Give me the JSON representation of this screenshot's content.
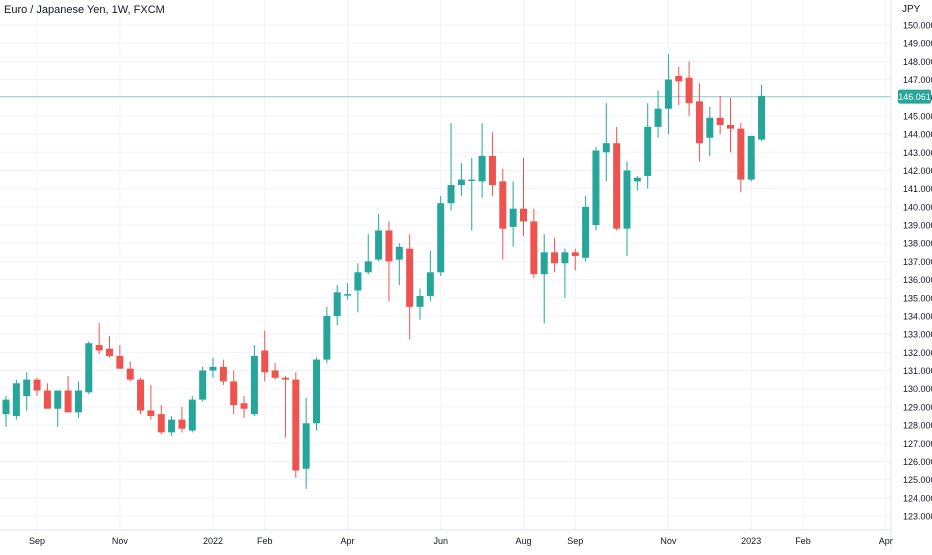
{
  "header": {
    "title": "Euro / Japanese Yen, 1W, FXCM",
    "unit": "JPY"
  },
  "colors": {
    "up": "#26a69a",
    "down": "#ef5350",
    "grid": "#f0f3fa",
    "price_line": "#26a69a",
    "text": "#131722"
  },
  "chart_data": {
    "type": "candlestick",
    "title": "Euro / Japanese Yen, 1W, FXCM",
    "ylabel": "JPY",
    "y_ticks": [
      "123.000",
      "124.000",
      "125.000",
      "126.000",
      "127.000",
      "128.000",
      "129.000",
      "130.000",
      "131.000",
      "132.000",
      "133.000",
      "134.000",
      "135.000",
      "136.000",
      "137.000",
      "138.000",
      "139.000",
      "140.000",
      "141.000",
      "142.000",
      "143.000",
      "144.000",
      "145.000",
      "146.000",
      "147.000",
      "148.000",
      "149.000",
      "150.000"
    ],
    "x_ticks": [
      {
        "label": "Sep",
        "index": 3
      },
      {
        "label": "Nov",
        "index": 11
      },
      {
        "label": "2022",
        "index": 20
      },
      {
        "label": "Feb",
        "index": 25
      },
      {
        "label": "Apr",
        "index": 33
      },
      {
        "label": "Jun",
        "index": 42
      },
      {
        "label": "Aug",
        "index": 50
      },
      {
        "label": "Sep",
        "index": 55
      },
      {
        "label": "Nov",
        "index": 64
      },
      {
        "label": "2023",
        "index": 72
      },
      {
        "label": "Feb",
        "index": 77
      },
      {
        "label": "Apr",
        "index": 85
      }
    ],
    "ylim": [
      122.5,
      151.0
    ],
    "last_price": "146.061",
    "candles": [
      {
        "o": 128.6,
        "h": 129.6,
        "l": 127.9,
        "c": 129.4
      },
      {
        "o": 128.5,
        "h": 130.5,
        "l": 128.3,
        "c": 130.3
      },
      {
        "o": 129.6,
        "h": 130.9,
        "l": 128.8,
        "c": 130.5
      },
      {
        "o": 130.5,
        "h": 130.6,
        "l": 129.6,
        "c": 129.9
      },
      {
        "o": 129.9,
        "h": 130.3,
        "l": 128.9,
        "c": 128.9
      },
      {
        "o": 128.9,
        "h": 129.8,
        "l": 127.9,
        "c": 129.9
      },
      {
        "o": 129.9,
        "h": 130.7,
        "l": 128.7,
        "c": 128.7
      },
      {
        "o": 128.7,
        "h": 130.4,
        "l": 128.4,
        "c": 129.9
      },
      {
        "o": 129.8,
        "h": 132.6,
        "l": 129.7,
        "c": 132.5
      },
      {
        "o": 132.4,
        "h": 133.6,
        "l": 131.9,
        "c": 132.1
      },
      {
        "o": 132.2,
        "h": 132.9,
        "l": 131.7,
        "c": 131.8
      },
      {
        "o": 131.8,
        "h": 132.4,
        "l": 131.1,
        "c": 131.1
      },
      {
        "o": 131.1,
        "h": 131.5,
        "l": 130.4,
        "c": 130.5
      },
      {
        "o": 130.5,
        "h": 130.6,
        "l": 128.6,
        "c": 128.8
      },
      {
        "o": 128.8,
        "h": 130.2,
        "l": 128.3,
        "c": 128.5
      },
      {
        "o": 128.6,
        "h": 129.1,
        "l": 127.5,
        "c": 127.6
      },
      {
        "o": 127.6,
        "h": 128.5,
        "l": 127.4,
        "c": 128.3
      },
      {
        "o": 128.3,
        "h": 129.0,
        "l": 127.6,
        "c": 127.8
      },
      {
        "o": 127.7,
        "h": 129.6,
        "l": 127.6,
        "c": 129.4
      },
      {
        "o": 129.4,
        "h": 131.2,
        "l": 129.3,
        "c": 131.0
      },
      {
        "o": 131.0,
        "h": 131.7,
        "l": 130.6,
        "c": 131.2
      },
      {
        "o": 131.2,
        "h": 131.6,
        "l": 130.2,
        "c": 130.4
      },
      {
        "o": 130.4,
        "h": 131.0,
        "l": 128.6,
        "c": 129.1
      },
      {
        "o": 129.2,
        "h": 129.6,
        "l": 128.4,
        "c": 128.9
      },
      {
        "o": 128.6,
        "h": 132.4,
        "l": 128.5,
        "c": 131.8
      },
      {
        "o": 132.1,
        "h": 133.2,
        "l": 130.4,
        "c": 130.9
      },
      {
        "o": 131.0,
        "h": 131.4,
        "l": 130.5,
        "c": 130.6
      },
      {
        "o": 130.6,
        "h": 130.7,
        "l": 127.3,
        "c": 130.5
      },
      {
        "o": 130.5,
        "h": 130.9,
        "l": 125.1,
        "c": 125.5
      },
      {
        "o": 125.6,
        "h": 129.5,
        "l": 124.5,
        "c": 128.1
      },
      {
        "o": 128.1,
        "h": 131.7,
        "l": 127.7,
        "c": 131.6
      },
      {
        "o": 131.6,
        "h": 134.5,
        "l": 131.4,
        "c": 134.0
      },
      {
        "o": 134.0,
        "h": 135.7,
        "l": 133.5,
        "c": 135.3
      },
      {
        "o": 135.2,
        "h": 135.8,
        "l": 134.9,
        "c": 135.2
      },
      {
        "o": 135.4,
        "h": 136.9,
        "l": 134.2,
        "c": 136.4
      },
      {
        "o": 136.4,
        "h": 138.5,
        "l": 136.3,
        "c": 137.0
      },
      {
        "o": 137.1,
        "h": 139.6,
        "l": 137.0,
        "c": 138.7
      },
      {
        "o": 138.7,
        "h": 139.2,
        "l": 134.8,
        "c": 137.0
      },
      {
        "o": 137.1,
        "h": 138.0,
        "l": 135.7,
        "c": 137.8
      },
      {
        "o": 137.7,
        "h": 138.5,
        "l": 132.7,
        "c": 134.5
      },
      {
        "o": 134.5,
        "h": 135.5,
        "l": 133.8,
        "c": 135.1
      },
      {
        "o": 135.1,
        "h": 137.6,
        "l": 134.8,
        "c": 136.4
      },
      {
        "o": 136.4,
        "h": 140.6,
        "l": 136.2,
        "c": 140.2
      },
      {
        "o": 140.2,
        "h": 144.6,
        "l": 139.8,
        "c": 141.2
      },
      {
        "o": 141.2,
        "h": 142.4,
        "l": 140.6,
        "c": 141.5
      },
      {
        "o": 141.5,
        "h": 142.7,
        "l": 138.7,
        "c": 141.5
      },
      {
        "o": 141.4,
        "h": 144.6,
        "l": 140.5,
        "c": 142.8
      },
      {
        "o": 142.8,
        "h": 144.1,
        "l": 140.6,
        "c": 141.2
      },
      {
        "o": 141.4,
        "h": 142.1,
        "l": 137.1,
        "c": 138.8
      },
      {
        "o": 138.9,
        "h": 141.4,
        "l": 137.8,
        "c": 139.9
      },
      {
        "o": 139.9,
        "h": 142.7,
        "l": 138.4,
        "c": 139.2
      },
      {
        "o": 139.2,
        "h": 139.9,
        "l": 136.1,
        "c": 136.3
      },
      {
        "o": 136.3,
        "h": 138.5,
        "l": 133.6,
        "c": 137.5
      },
      {
        "o": 137.5,
        "h": 138.3,
        "l": 136.4,
        "c": 136.9
      },
      {
        "o": 136.9,
        "h": 137.7,
        "l": 135.0,
        "c": 137.5
      },
      {
        "o": 137.5,
        "h": 137.7,
        "l": 136.5,
        "c": 137.3
      },
      {
        "o": 137.2,
        "h": 140.6,
        "l": 137.0,
        "c": 140.0
      },
      {
        "o": 139.0,
        "h": 143.3,
        "l": 138.7,
        "c": 143.1
      },
      {
        "o": 143.0,
        "h": 145.7,
        "l": 141.4,
        "c": 143.5
      },
      {
        "o": 143.5,
        "h": 144.4,
        "l": 138.7,
        "c": 138.8
      },
      {
        "o": 138.8,
        "h": 142.5,
        "l": 137.3,
        "c": 142.0
      },
      {
        "o": 141.4,
        "h": 141.7,
        "l": 140.9,
        "c": 141.6
      },
      {
        "o": 141.7,
        "h": 145.7,
        "l": 141.0,
        "c": 144.4
      },
      {
        "o": 144.4,
        "h": 146.4,
        "l": 143.8,
        "c": 145.4
      },
      {
        "o": 145.4,
        "h": 148.4,
        "l": 144.0,
        "c": 147.0
      },
      {
        "o": 147.2,
        "h": 147.7,
        "l": 145.6,
        "c": 146.9
      },
      {
        "o": 147.1,
        "h": 148.0,
        "l": 145.0,
        "c": 145.7
      },
      {
        "o": 145.8,
        "h": 146.8,
        "l": 142.5,
        "c": 143.5
      },
      {
        "o": 143.8,
        "h": 145.5,
        "l": 142.8,
        "c": 144.9
      },
      {
        "o": 144.9,
        "h": 146.1,
        "l": 144.0,
        "c": 144.5
      },
      {
        "o": 144.5,
        "h": 146.0,
        "l": 143.0,
        "c": 144.3
      },
      {
        "o": 144.3,
        "h": 144.6,
        "l": 140.8,
        "c": 141.5
      },
      {
        "o": 141.5,
        "h": 143.9,
        "l": 141.4,
        "c": 143.9
      },
      {
        "o": 143.7,
        "h": 146.7,
        "l": 143.6,
        "c": 146.1
      }
    ]
  }
}
